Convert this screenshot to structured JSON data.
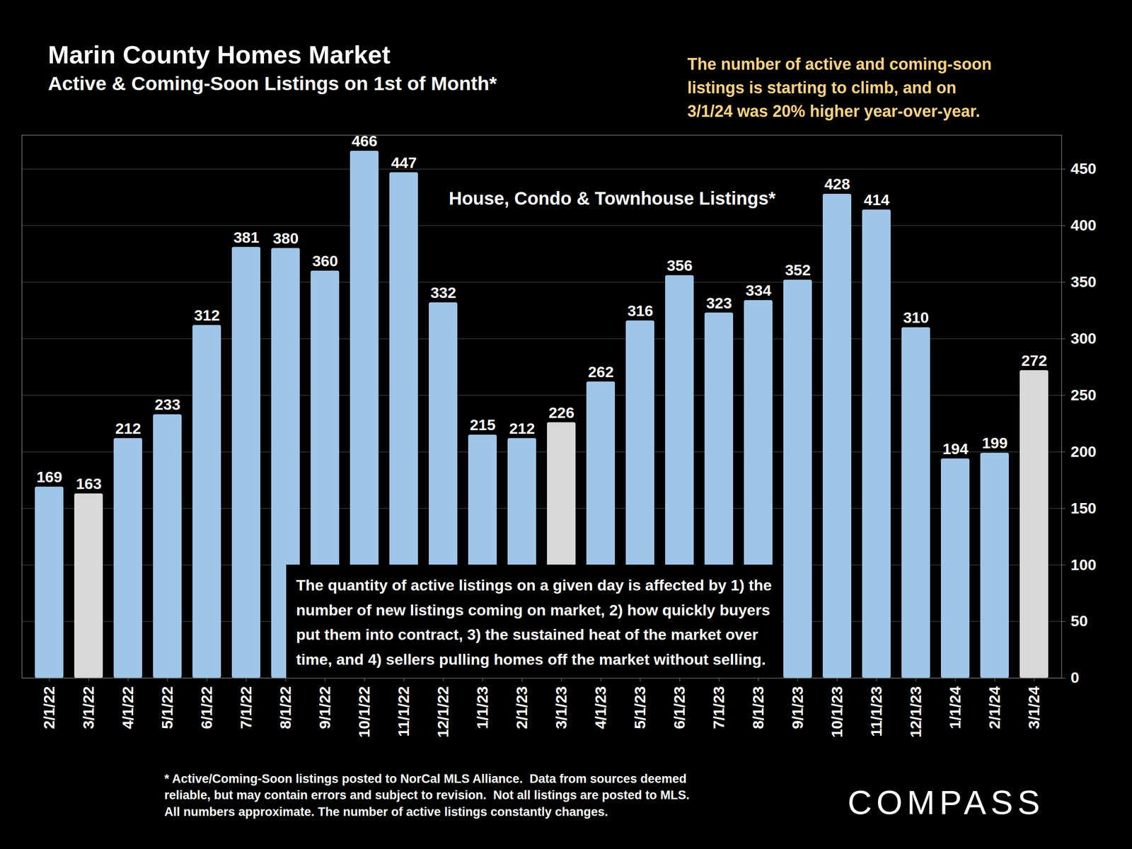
{
  "chart_data": {
    "type": "bar",
    "title": "Marin County Homes Market",
    "subtitle": "Active & Coming-Soon Listings on 1st of Month*",
    "categories": [
      "2/1/22",
      "3/1/22",
      "4/1/22",
      "5/1/22",
      "6/1/22",
      "7/1/22",
      "8/1/22",
      "9/1/22",
      "10/1/22",
      "11/1/22",
      "12/1/22",
      "1/1/23",
      "2/1/23",
      "3/1/23",
      "4/1/23",
      "5/1/23",
      "6/1/23",
      "7/1/23",
      "8/1/23",
      "9/1/23",
      "10/1/23",
      "11/1/23",
      "12/1/23",
      "1/1/24",
      "2/1/24",
      "3/1/24"
    ],
    "values": [
      169,
      163,
      212,
      233,
      312,
      381,
      380,
      360,
      466,
      447,
      332,
      215,
      212,
      226,
      262,
      316,
      356,
      323,
      334,
      352,
      428,
      414,
      310,
      194,
      199,
      272
    ],
    "colors": [
      "#9fc5e8",
      "#d9d9d9",
      "#9fc5e8",
      "#9fc5e8",
      "#9fc5e8",
      "#9fc5e8",
      "#9fc5e8",
      "#9fc5e8",
      "#9fc5e8",
      "#9fc5e8",
      "#9fc5e8",
      "#9fc5e8",
      "#9fc5e8",
      "#d9d9d9",
      "#9fc5e8",
      "#9fc5e8",
      "#9fc5e8",
      "#9fc5e8",
      "#9fc5e8",
      "#9fc5e8",
      "#9fc5e8",
      "#9fc5e8",
      "#9fc5e8",
      "#9fc5e8",
      "#9fc5e8",
      "#d9d9d9"
    ],
    "ylim": [
      0,
      480
    ],
    "yticks": [
      0,
      50,
      100,
      150,
      200,
      250,
      300,
      350,
      400,
      450
    ],
    "grid": true,
    "data_labels": true,
    "annotations": {
      "headline": "The number of active and coming-soon\nlistings is starting to climb, and on\n3/1/24 was 20% higher year-over-year.",
      "series_label": "House, Condo & Townhouse Listings*",
      "note": "The quantity of active listings on a given day is affected by 1) the\nnumber of new listings coming on market, 2) how quickly buyers\nput them into contract, 3) the sustained heat of the market over\ntime, and 4) sellers pulling homes off the market without selling.",
      "footnote": "* Active/Coming-Soon listings posted to NorCal MLS Alliance.  Data from sources deemed\nreliable, but may contain errors and subject to revision.  Not all listings are posted to MLS.\nAll numbers approximate. The number of active listings constantly changes.",
      "brand": "COMPASS"
    }
  }
}
